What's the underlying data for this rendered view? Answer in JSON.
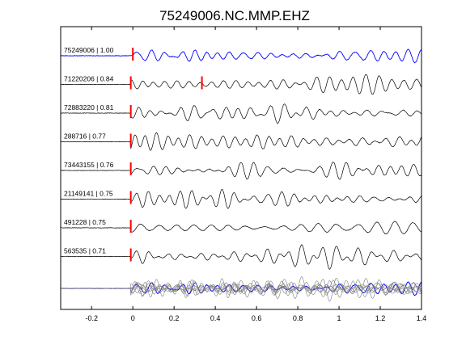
{
  "chart_data": {
    "type": "line",
    "title": "75249006.NC.MMP.EHZ",
    "xlabel": "",
    "ylabel": "",
    "xlim": [
      -0.35,
      1.4
    ],
    "xticks": [
      -0.2,
      0,
      0.2,
      0.4,
      0.6,
      0.8,
      1,
      1.2,
      1.4
    ],
    "xtick_labels": [
      "-0.2",
      "0",
      "0.2",
      "0.4",
      "0.6",
      "0.8",
      "1",
      "1.2",
      "1.4"
    ],
    "grid": false,
    "legend": "none",
    "colors": {
      "reference": "#0000ff",
      "trace": "#000000",
      "stack_trace": "#808080",
      "pick": "#ff0000",
      "axes": "#000000"
    },
    "traces": [
      {
        "id": "75249006",
        "cc": "1.00",
        "label": "75249006 | 1.00",
        "reference": true,
        "picks": [
          0.0
        ]
      },
      {
        "id": "71220206",
        "cc": "0.84",
        "label": "71220206 | 0.84",
        "reference": false,
        "picks": [
          -0.01,
          0.335
        ]
      },
      {
        "id": "72883220",
        "cc": "0.81",
        "label": "72883220 | 0.81",
        "reference": false,
        "picks": [
          -0.01
        ]
      },
      {
        "id": "288716",
        "cc": "0.77",
        "label": "288716 | 0.77",
        "reference": false,
        "picks": [
          -0.01
        ]
      },
      {
        "id": "73443155",
        "cc": "0.76",
        "label": "73443155 | 0.76",
        "reference": false,
        "picks": [
          -0.01
        ]
      },
      {
        "id": "21149141",
        "cc": "0.75",
        "label": "21149141 | 0.75",
        "reference": false,
        "picks": [
          -0.01
        ]
      },
      {
        "id": "491228",
        "cc": "0.75",
        "label": "491228 | 0.75",
        "reference": false,
        "picks": [
          -0.01
        ]
      },
      {
        "id": "563535",
        "cc": "0.71",
        "label": "563535 | 0.71",
        "reference": false,
        "picks": [
          -0.01
        ]
      }
    ],
    "stack": {
      "overlay_of_all_traces": true,
      "start_x": -0.35
    }
  }
}
